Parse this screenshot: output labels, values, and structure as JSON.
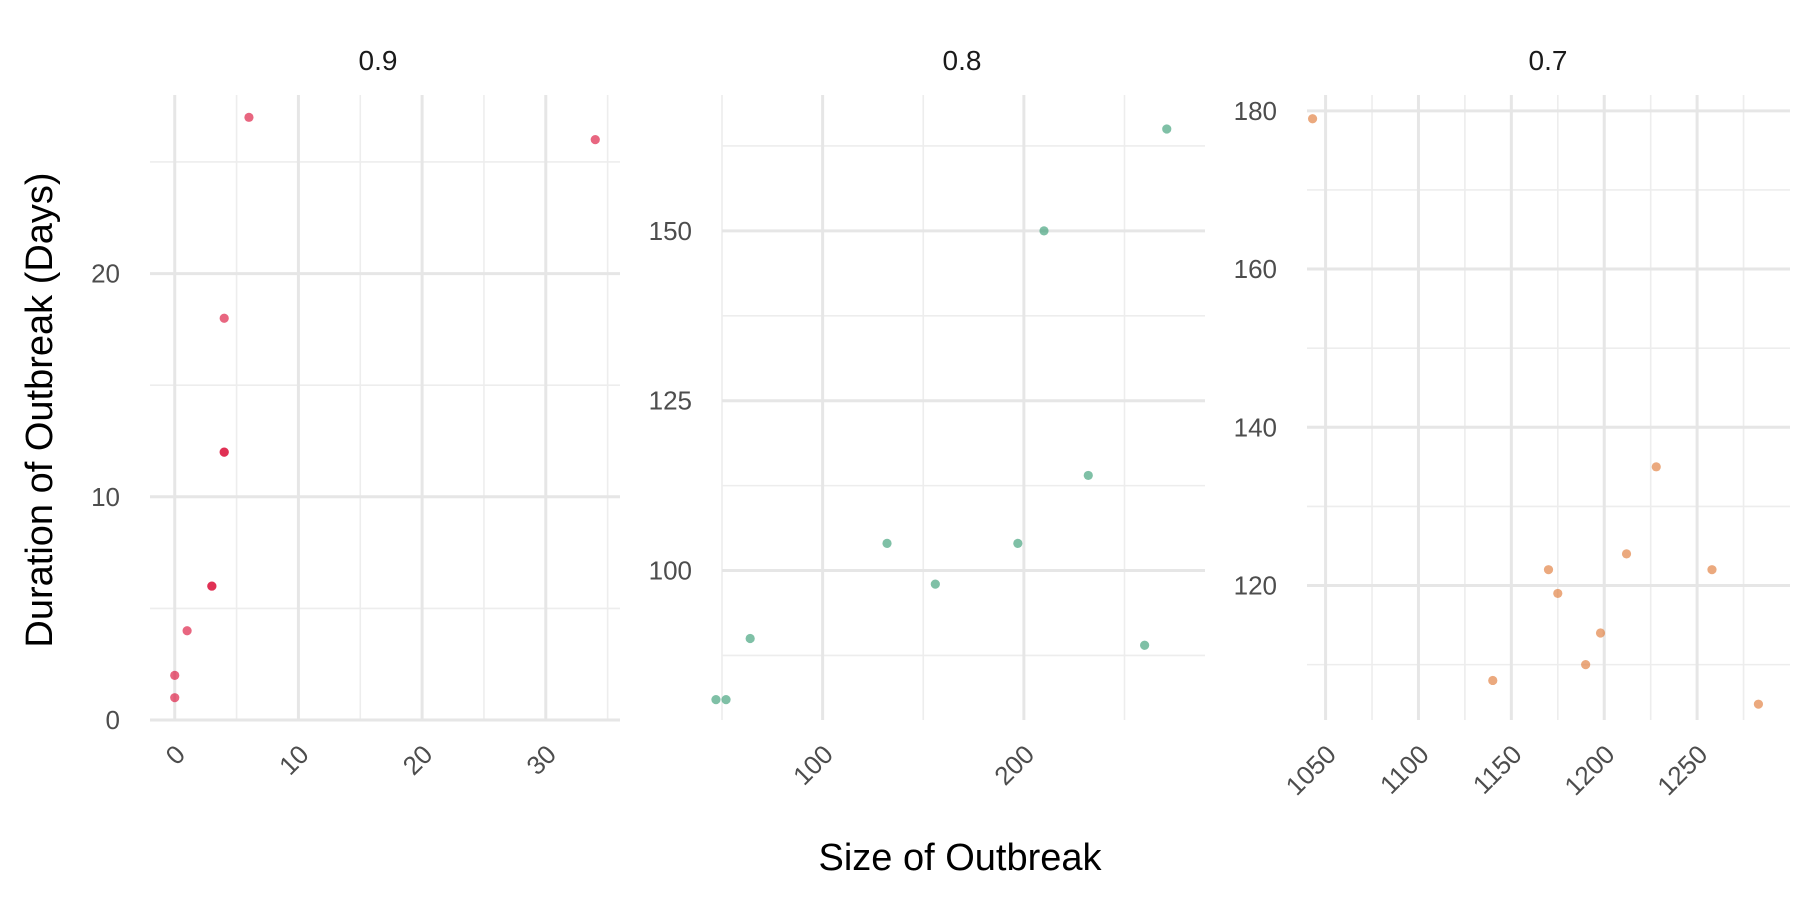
{
  "chart_data": {
    "type": "scatter",
    "xlabel": "Size of Outbreak",
    "ylabel": "Duration of Outbreak (Days)",
    "grid": true,
    "legend": "none",
    "panels": [
      {
        "title": "0.9",
        "color": "#dc143c",
        "xlim": [
          -2,
          36
        ],
        "ylim": [
          0,
          28
        ],
        "x_ticks": [
          0,
          10,
          20,
          30
        ],
        "x_tick_labels": [
          "0",
          "10",
          "20",
          "30"
        ],
        "y_ticks": [
          0,
          10,
          20
        ],
        "y_tick_labels": [
          "0",
          "10",
          "20"
        ],
        "points": [
          [
            0,
            1
          ],
          [
            0,
            2
          ],
          [
            1,
            4
          ],
          [
            3,
            6
          ],
          [
            3,
            6
          ],
          [
            4,
            12
          ],
          [
            4,
            12
          ],
          [
            4,
            18
          ],
          [
            6,
            27
          ],
          [
            34,
            26
          ]
        ]
      },
      {
        "title": "0.8",
        "color": "#3a9e77",
        "xlim": [
          50,
          290
        ],
        "ylim": [
          78,
          170
        ],
        "x_ticks": [
          100,
          200
        ],
        "x_tick_labels": [
          "100",
          "200"
        ],
        "y_ticks": [
          100,
          125,
          150
        ],
        "y_tick_labels": [
          "100",
          "125",
          "150"
        ],
        "points": [
          [
            47,
            81
          ],
          [
            52,
            81
          ],
          [
            64,
            90
          ],
          [
            132,
            104
          ],
          [
            156,
            98
          ],
          [
            197,
            104
          ],
          [
            210,
            150
          ],
          [
            232,
            114
          ],
          [
            260,
            89
          ],
          [
            271,
            165
          ]
        ]
      },
      {
        "title": "0.7",
        "color": "#e07b39",
        "xlim": [
          1040,
          1300
        ],
        "ylim": [
          103,
          182
        ],
        "x_ticks": [
          1050,
          1100,
          1150,
          1200,
          1250
        ],
        "x_tick_labels": [
          "1050",
          "1100",
          "1150",
          "1200",
          "1250"
        ],
        "y_ticks": [
          120,
          140,
          160,
          180
        ],
        "y_tick_labels": [
          "120",
          "140",
          "160",
          "180"
        ],
        "points": [
          [
            1043,
            179
          ],
          [
            1140,
            108
          ],
          [
            1170,
            122
          ],
          [
            1175,
            119
          ],
          [
            1190,
            110
          ],
          [
            1198,
            114
          ],
          [
            1212,
            124
          ],
          [
            1228,
            135
          ],
          [
            1258,
            122
          ],
          [
            1283,
            105
          ]
        ]
      }
    ]
  }
}
